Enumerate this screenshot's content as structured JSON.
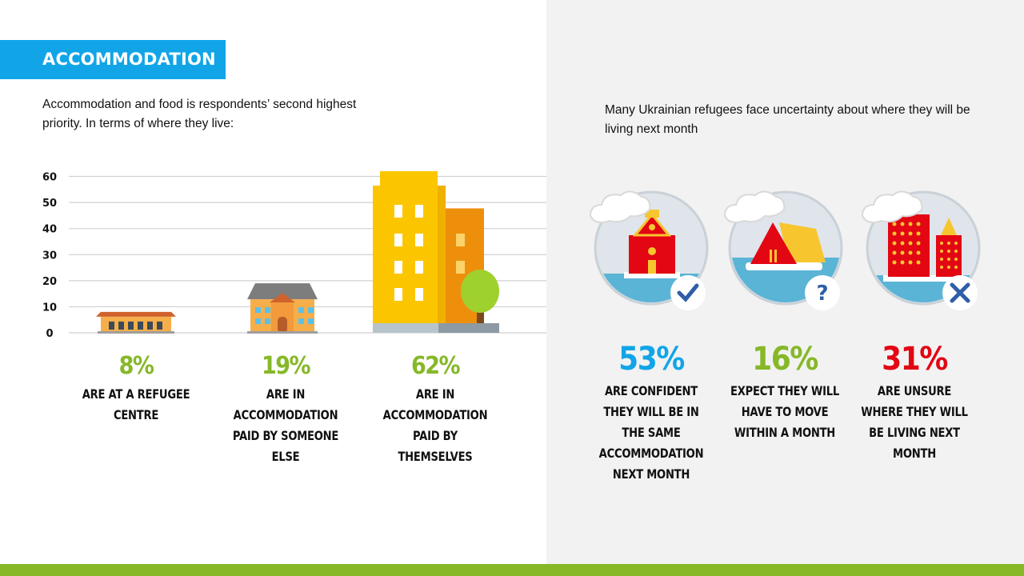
{
  "section": {
    "title": "ACCOMMODATION"
  },
  "intro": {
    "text": "Accommodation and food is respondents’ second highest priority. In terms of where they live:"
  },
  "right_intro": {
    "text": "Many Ukrainian refugees face uncertainty about where they will be living next month"
  },
  "colors": {
    "banner": "#11a5e8",
    "green": "#86b828",
    "blue": "#11a5e8",
    "red": "#e30613",
    "panel": "#f2f2f2"
  },
  "chart_data": {
    "type": "bar",
    "categories": [
      "ARE AT A REFUGEE CENTRE",
      "ARE IN ACCOMMODATION PAID BY SOMEONE ELSE",
      "ARE IN ACCOMMODATION PAID BY THEMSELVES"
    ],
    "values": [
      8,
      19,
      62
    ],
    "value_labels": [
      "8%",
      "19%",
      "62%"
    ],
    "yticks": [
      0,
      10,
      20,
      30,
      40,
      50,
      60
    ],
    "ylim": [
      0,
      62
    ],
    "grid": true,
    "bar_icons": [
      "refugee-centre-building-icon",
      "house-icon",
      "apartment-tower-icon"
    ]
  },
  "stats": [
    {
      "value": "53%",
      "label": "ARE CONFIDENT THEY WILL BE IN THE SAME ACCOMMODATION NEXT MONTH",
      "color": "#11a5e8",
      "icon": "house-check-icon"
    },
    {
      "value": "16%",
      "label": "EXPECT THEY WILL HAVE TO MOVE WITHIN A MONTH",
      "color": "#86b828",
      "icon": "tent-question-icon"
    },
    {
      "value": "31%",
      "label": "ARE UNSURE WHERE THEY WILL BE LIVING NEXT MONTH",
      "color": "#e30613",
      "icon": "city-cross-icon"
    }
  ]
}
